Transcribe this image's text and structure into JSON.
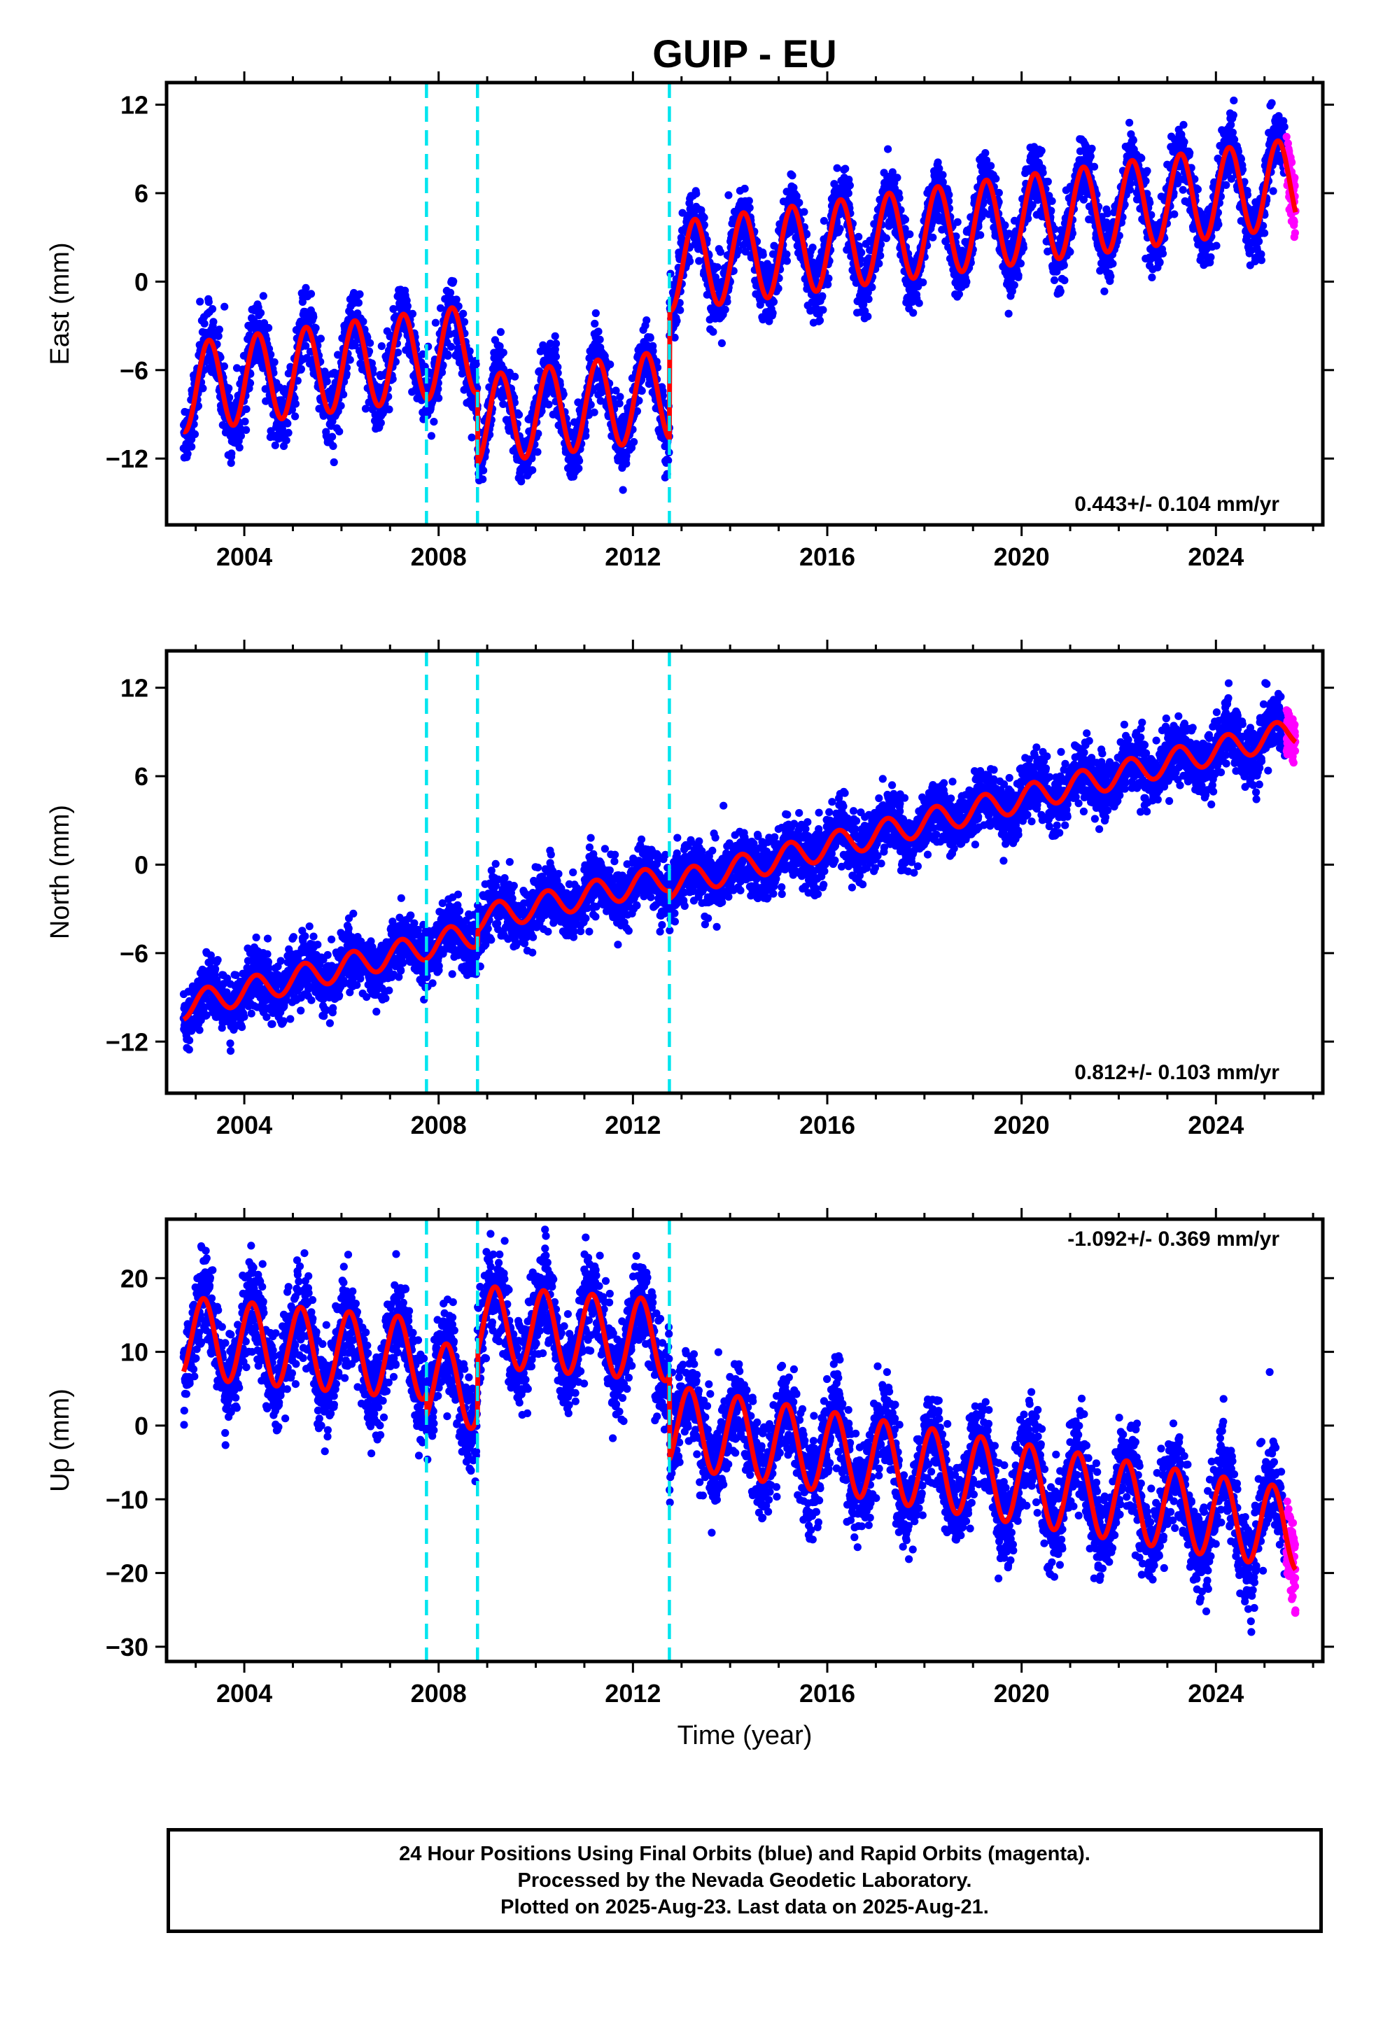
{
  "title": "GUIP - EU",
  "xlabel": "Time (year)",
  "colors": {
    "final_orbits": "#0000ff",
    "rapid_orbits": "#ff00ff",
    "model_fit": "#ff0000",
    "steps": "#00e5ee",
    "axes": "#000000"
  },
  "caption": {
    "line1": "24 Hour Positions Using Final Orbits (blue) and Rapid Orbits (magenta).",
    "line2": "Processed by the Nevada Geodetic Laboratory.",
    "line3": "Plotted on 2025-Aug-23. Last data on 2025-Aug-21."
  },
  "chart_data": [
    {
      "type": "scatter",
      "component": "east",
      "ylabel": "East (mm)",
      "rate_label": "0.443+/- 0.104 mm/yr",
      "rate_position": "bottom-right",
      "xlim": [
        2002.4,
        2026.2
      ],
      "ylim": [
        -16.5,
        13.5
      ],
      "xticks": [
        2004,
        2008,
        2012,
        2016,
        2020,
        2024
      ],
      "xtick_labels": [
        "2004",
        "2008",
        "2012",
        "2016",
        "2020",
        "2024"
      ],
      "yticks": [
        -12,
        -6,
        0,
        6,
        12
      ],
      "ytick_labels": [
        "−12",
        "−6",
        "0",
        "6",
        "12"
      ],
      "data_start": 2002.75,
      "data_end": 2025.42,
      "rapid_start": 2025.45,
      "rapid_end": 2025.64,
      "steps": [
        2007.75,
        2008.8,
        2012.75
      ],
      "segments": [
        {
          "start": 2002.75,
          "end": 2007.75,
          "value_at_start": -7.2,
          "rate": 0.44
        },
        {
          "start": 2007.75,
          "end": 2008.8,
          "value_at_start": -5.0,
          "rate": 0.44
        },
        {
          "start": 2008.8,
          "end": 2012.75,
          "value_at_start": -9.4,
          "rate": 0.44
        },
        {
          "start": 2012.75,
          "end": 2025.64,
          "value_at_start": 1.0,
          "rate": 0.443
        }
      ],
      "annual_amplitude": 3.0,
      "annual_phase": -0.15,
      "scatter_sd": 1.1,
      "point_count": 5200,
      "rapid_spread": 2.2
    },
    {
      "type": "scatter",
      "component": "north",
      "ylabel": "North (mm)",
      "rate_label": "0.812+/- 0.103 mm/yr",
      "rate_position": "bottom-right",
      "xlim": [
        2002.4,
        2026.2
      ],
      "ylim": [
        -15.5,
        14.5
      ],
      "xticks": [
        2004,
        2008,
        2012,
        2016,
        2020,
        2024
      ],
      "xtick_labels": [
        "2004",
        "2008",
        "2012",
        "2016",
        "2020",
        "2024"
      ],
      "yticks": [
        -12,
        -6,
        0,
        6,
        12
      ],
      "ytick_labels": [
        "−12",
        "−6",
        "0",
        "6",
        "12"
      ],
      "data_start": 2002.75,
      "data_end": 2025.42,
      "rapid_start": 2025.45,
      "rapid_end": 2025.64,
      "steps": [
        2007.75,
        2008.8,
        2012.75
      ],
      "segments": [
        {
          "start": 2002.75,
          "end": 2007.75,
          "value_at_start": -9.6,
          "rate": 0.81
        },
        {
          "start": 2007.75,
          "end": 2008.8,
          "value_at_start": -5.5,
          "rate": 0.81
        },
        {
          "start": 2008.8,
          "end": 2012.75,
          "value_at_start": -3.7,
          "rate": 0.72
        },
        {
          "start": 2012.75,
          "end": 2025.64,
          "value_at_start": -1.4,
          "rate": 0.812
        }
      ],
      "annual_amplitude": 0.9,
      "annual_phase": 0.1,
      "scatter_sd": 1.05,
      "point_count": 5200,
      "rapid_spread": 1.6
    },
    {
      "type": "scatter",
      "component": "up",
      "ylabel": "Up (mm)",
      "rate_label": "-1.092+/- 0.369 mm/yr",
      "rate_position": "top-right",
      "xlim": [
        2002.4,
        2026.2
      ],
      "ylim": [
        -32,
        28
      ],
      "xticks": [
        2004,
        2008,
        2012,
        2016,
        2020,
        2024
      ],
      "xtick_labels": [
        "2004",
        "2008",
        "2012",
        "2016",
        "2020",
        "2024"
      ],
      "yticks": [
        -30,
        -20,
        -10,
        0,
        10,
        20
      ],
      "ytick_labels": [
        "−30",
        "−20",
        "−10",
        "0",
        "10",
        "20"
      ],
      "data_start": 2002.75,
      "data_end": 2025.42,
      "rapid_start": 2025.45,
      "rapid_end": 2025.64,
      "steps": [
        2007.75,
        2008.8,
        2012.75
      ],
      "segments": [
        {
          "start": 2002.75,
          "end": 2007.75,
          "value_at_start": 12.0,
          "rate": -0.6
        },
        {
          "start": 2007.75,
          "end": 2008.8,
          "value_at_start": 6.0,
          "rate": -1.0
        },
        {
          "start": 2008.8,
          "end": 2012.75,
          "value_at_start": 13.5,
          "rate": -0.5
        },
        {
          "start": 2012.75,
          "end": 2025.64,
          "value_at_start": 0.0,
          "rate": -1.092
        }
      ],
      "annual_amplitude": 5.5,
      "annual_phase": 0.55,
      "scatter_sd": 3.2,
      "point_count": 5200,
      "rapid_spread": 6.0
    }
  ]
}
